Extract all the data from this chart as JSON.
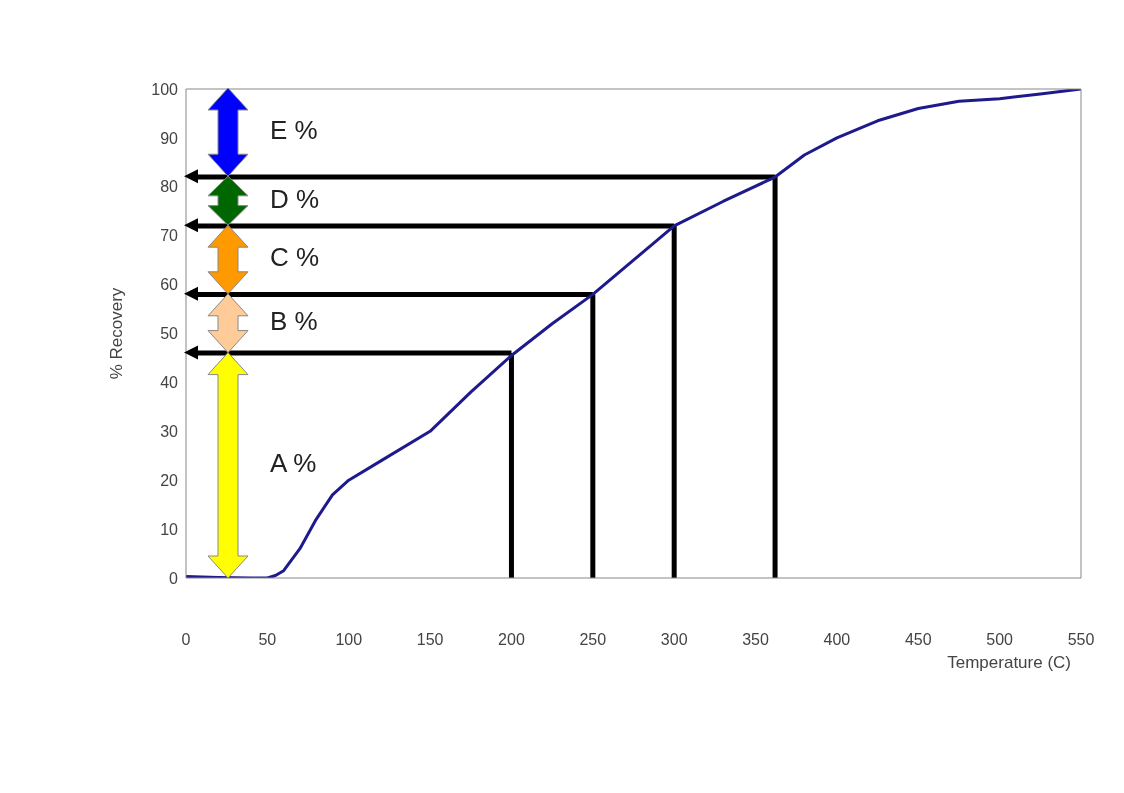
{
  "chart_data": {
    "type": "line",
    "xlabel": "Temperature (C)",
    "ylabel": "% Recovery",
    "xlim": [
      0,
      550
    ],
    "xticks": [
      0,
      50,
      100,
      150,
      200,
      250,
      300,
      350,
      400,
      450,
      500,
      550
    ],
    "ylim": [
      0,
      100
    ],
    "yticks": [
      0,
      10,
      20,
      30,
      40,
      50,
      60,
      70,
      80,
      90,
      100
    ],
    "marker": "none",
    "series": [
      {
        "color": "#1f1a8c",
        "x": [
          0,
          20,
          40,
          50,
          55,
          60,
          70,
          80,
          90,
          100,
          120,
          150,
          175,
          200,
          225,
          250,
          275,
          300,
          330,
          362,
          380,
          400,
          425,
          450,
          475,
          500,
          525,
          550
        ],
        "values": [
          0.3,
          0.1,
          0,
          0,
          0.5,
          1.5,
          6,
          12,
          17,
          20,
          24,
          30,
          38,
          45.5,
          52,
          58,
          65,
          72,
          77,
          82,
          86.5,
          90,
          93.5,
          96,
          97.5,
          98,
          99,
          100
        ]
      }
    ],
    "ref_lines": [
      {
        "axis": "y",
        "value": 46,
        "color": "#000000"
      },
      {
        "axis": "y",
        "value": 58,
        "color": "#000000"
      },
      {
        "axis": "y",
        "value": 72,
        "color": "#000000"
      },
      {
        "axis": "y",
        "value": 82,
        "color": "#000000"
      },
      {
        "axis": "x",
        "value": 200,
        "color": "#000000"
      },
      {
        "axis": "x",
        "value": 250,
        "color": "#000000"
      },
      {
        "axis": "x",
        "value": 300,
        "color": "#000000"
      },
      {
        "axis": "x",
        "value": 362,
        "color": "#000000"
      }
    ],
    "annotations": [
      "A %",
      "B %",
      "C %",
      "D %",
      "E %"
    ]
  }
}
